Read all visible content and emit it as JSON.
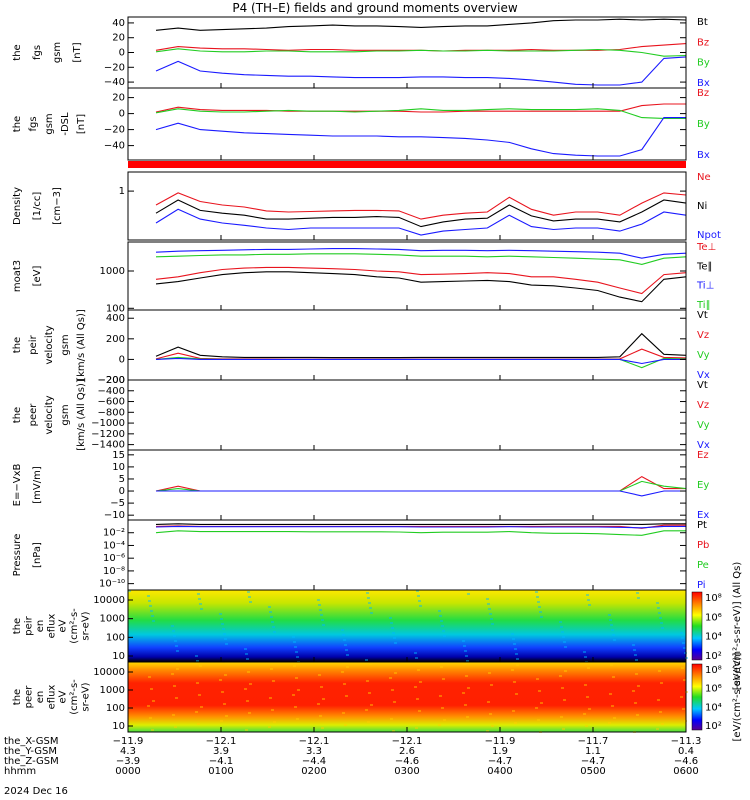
{
  "title": "P4 (TH–E) fields and ground moments overview",
  "colors": {
    "black": "#000000",
    "red": "#e8141e",
    "green": "#22cc22",
    "blue": "#1a1aff"
  },
  "chart_data": [
    {
      "type": "line",
      "ylabel": [
        "the",
        "fgs",
        "gsm",
        "[nT]"
      ],
      "ylim": [
        -48,
        48
      ],
      "yticks": [
        "40",
        "20",
        "0",
        "−20",
        "−40"
      ],
      "ytick_values": [
        40,
        20,
        0,
        -20,
        -40
      ],
      "series": [
        {
          "name": "Bt",
          "color": "black",
          "values": [
            30,
            33,
            30,
            31,
            32,
            33,
            35,
            36,
            37,
            36,
            36,
            35,
            34,
            35,
            36,
            36,
            38,
            40,
            43,
            44,
            44,
            45,
            44,
            45,
            44
          ]
        },
        {
          "name": "Bz",
          "color": "red",
          "values": [
            3,
            8,
            6,
            5,
            5,
            4,
            3,
            4,
            4,
            3,
            3,
            3,
            3,
            2,
            3,
            3,
            3,
            4,
            3,
            3,
            3,
            4,
            8,
            10,
            12
          ]
        },
        {
          "name": "By",
          "color": "green",
          "values": [
            1,
            5,
            2,
            1,
            1,
            2,
            2,
            1,
            1,
            1,
            2,
            2,
            3,
            2,
            2,
            3,
            2,
            2,
            2,
            3,
            4,
            3,
            0,
            -5,
            -4
          ]
        },
        {
          "name": "Bx",
          "color": "blue",
          "values": [
            -25,
            -12,
            -25,
            -28,
            -30,
            -31,
            -32,
            -32,
            -33,
            -34,
            -34,
            -34,
            -33,
            -33,
            -34,
            -34,
            -35,
            -37,
            -40,
            -43,
            -44,
            -44,
            -40,
            -8,
            -6
          ]
        }
      ]
    },
    {
      "type": "line",
      "ylabel": [
        "the",
        "fgs",
        "gsm",
        "-DSL",
        "[nT]"
      ],
      "ylim": [
        -58,
        32
      ],
      "yticks": [
        "20",
        "0",
        "−20",
        "−40"
      ],
      "ytick_values": [
        20,
        0,
        -20,
        -40
      ],
      "series": [
        {
          "name": "Bz",
          "color": "red",
          "values": [
            2,
            8,
            5,
            4,
            4,
            4,
            3,
            3,
            3,
            3,
            3,
            3,
            2,
            2,
            3,
            3,
            3,
            3,
            3,
            3,
            3,
            3,
            10,
            12,
            12
          ]
        },
        {
          "name": "By",
          "color": "green",
          "values": [
            1,
            6,
            3,
            2,
            2,
            3,
            4,
            3,
            3,
            2,
            3,
            4,
            6,
            4,
            4,
            5,
            6,
            5,
            5,
            5,
            6,
            4,
            -5,
            -6,
            -6
          ]
        },
        {
          "name": "Bx",
          "color": "blue",
          "values": [
            -20,
            -12,
            -20,
            -22,
            -24,
            -25,
            -26,
            -27,
            -28,
            -28,
            -28,
            -29,
            -29,
            -30,
            -31,
            -33,
            -36,
            -44,
            -50,
            -52,
            -53,
            -53,
            -45,
            -5,
            -5
          ]
        }
      ]
    },
    {
      "type": "line",
      "ylabel": [
        "Density",
        "[1/cc]",
        "[cm−3]"
      ],
      "scale": "log",
      "ylim": [
        0.06,
        3
      ],
      "yticks": [
        "1"
      ],
      "ytick_values": [
        1
      ],
      "series": [
        {
          "name": "Ne",
          "color": "red",
          "values": [
            0.45,
            0.9,
            0.55,
            0.45,
            0.4,
            0.32,
            0.3,
            0.31,
            0.32,
            0.33,
            0.33,
            0.32,
            0.2,
            0.25,
            0.28,
            0.3,
            0.7,
            0.35,
            0.25,
            0.3,
            0.3,
            0.25,
            0.5,
            0.9,
            0.8
          ]
        },
        {
          "name": "Ni",
          "color": "black",
          "values": [
            0.28,
            0.6,
            0.33,
            0.28,
            0.25,
            0.2,
            0.2,
            0.21,
            0.22,
            0.22,
            0.23,
            0.22,
            0.13,
            0.17,
            0.2,
            0.21,
            0.45,
            0.24,
            0.18,
            0.2,
            0.2,
            0.17,
            0.3,
            0.6,
            0.5
          ]
        },
        {
          "name": "Npot",
          "color": "blue",
          "values": [
            0.16,
            0.35,
            0.2,
            0.16,
            0.14,
            0.12,
            0.11,
            0.12,
            0.12,
            0.12,
            0.12,
            0.12,
            0.08,
            0.1,
            0.11,
            0.12,
            0.25,
            0.13,
            0.11,
            0.12,
            0.12,
            0.1,
            0.15,
            0.3,
            0.25
          ]
        }
      ]
    },
    {
      "type": "line",
      "ylabel": [
        "moat3",
        "[eV]"
      ],
      "scale": "log",
      "ylim": [
        90,
        6000
      ],
      "yticks": [
        "1000",
        "100"
      ],
      "ytick_values": [
        1000,
        100
      ],
      "series": [
        {
          "name": "Te⊥",
          "color": "red",
          "values": [
            600,
            700,
            900,
            1100,
            1200,
            1250,
            1250,
            1200,
            1150,
            1100,
            1000,
            950,
            800,
            820,
            850,
            900,
            850,
            700,
            700,
            600,
            500,
            350,
            250,
            800,
            900
          ]
        },
        {
          "name": "Te∥",
          "color": "black",
          "values": [
            450,
            520,
            650,
            800,
            900,
            950,
            950,
            900,
            850,
            800,
            700,
            650,
            500,
            520,
            540,
            560,
            520,
            420,
            400,
            350,
            300,
            200,
            150,
            600,
            700
          ]
        },
        {
          "name": "Ti⊥",
          "color": "blue",
          "values": [
            3200,
            3400,
            3500,
            3600,
            3700,
            3800,
            3800,
            3900,
            4000,
            4000,
            3900,
            3800,
            3500,
            3600,
            3600,
            3500,
            3600,
            3500,
            3400,
            3300,
            3200,
            3000,
            2200,
            2800,
            3000
          ]
        },
        {
          "name": "Ti∥",
          "color": "green",
          "values": [
            2400,
            2500,
            2600,
            2700,
            2700,
            2800,
            2800,
            2900,
            2900,
            2900,
            2800,
            2700,
            2500,
            2500,
            2500,
            2400,
            2500,
            2400,
            2300,
            2200,
            2100,
            2000,
            1500,
            2200,
            2400
          ]
        }
      ]
    },
    {
      "type": "line",
      "ylabel": [
        "the",
        "peir",
        "velocity",
        "gsm",
        "[km/s (All Qs)]"
      ],
      "ylim": [
        -200,
        480
      ],
      "yticks": [
        "400",
        "200",
        "0",
        "−200"
      ],
      "ytick_values": [
        400,
        200,
        0,
        -200
      ],
      "series": [
        {
          "name": "Vt",
          "color": "black",
          "values": [
            30,
            120,
            40,
            25,
            20,
            20,
            20,
            20,
            18,
            18,
            18,
            18,
            20,
            20,
            20,
            20,
            20,
            20,
            20,
            20,
            20,
            25,
            250,
            50,
            40
          ]
        },
        {
          "name": "Vz",
          "color": "red",
          "values": [
            5,
            60,
            10,
            5,
            5,
            5,
            3,
            3,
            3,
            3,
            3,
            3,
            3,
            3,
            3,
            3,
            3,
            3,
            3,
            3,
            3,
            5,
            100,
            20,
            15
          ]
        },
        {
          "name": "Vy",
          "color": "green",
          "values": [
            0,
            20,
            5,
            0,
            0,
            0,
            0,
            0,
            0,
            0,
            0,
            0,
            0,
            0,
            0,
            0,
            0,
            0,
            0,
            0,
            0,
            0,
            -80,
            10,
            5
          ]
        },
        {
          "name": "Vx",
          "color": "blue",
          "values": [
            0,
            10,
            0,
            0,
            0,
            0,
            0,
            0,
            0,
            0,
            0,
            0,
            0,
            0,
            0,
            0,
            0,
            0,
            0,
            0,
            0,
            0,
            -40,
            0,
            0
          ]
        }
      ]
    },
    {
      "type": "line",
      "ylabel": [
        "the",
        "peer",
        "velocity",
        "gsm",
        "[km/s (All Qs)]"
      ],
      "ylim": [
        -1500,
        -200
      ],
      "yticks": [
        "−200",
        "−400",
        "−600",
        "−800",
        "−1000",
        "−1200",
        "−1400"
      ],
      "ytick_values": [
        -200,
        -400,
        -600,
        -800,
        -1000,
        -1200,
        -1400
      ],
      "series": [
        {
          "name": "Vt",
          "color": "black",
          "values": []
        },
        {
          "name": "Vz",
          "color": "red",
          "values": []
        },
        {
          "name": "Vy",
          "color": "green",
          "values": []
        },
        {
          "name": "Vx",
          "color": "blue",
          "values": []
        }
      ]
    },
    {
      "type": "line",
      "ylabel": [
        "E=−VxB",
        "[mV/m]"
      ],
      "ylim": [
        -12,
        17
      ],
      "yticks": [
        "15",
        "10",
        "5",
        "0",
        "−5",
        "−10"
      ],
      "ytick_values": [
        15,
        10,
        5,
        0,
        -5,
        -10
      ],
      "series": [
        {
          "name": "Ez",
          "color": "red",
          "values": [
            0,
            2,
            0,
            0,
            0,
            0,
            0,
            0,
            0,
            0,
            0,
            0,
            0,
            0,
            0,
            0,
            0,
            0,
            0,
            0,
            0,
            0,
            6,
            1,
            1
          ]
        },
        {
          "name": "Ey",
          "color": "green",
          "values": [
            0,
            1,
            0,
            0,
            0,
            0,
            0,
            0,
            0,
            0,
            0,
            0,
            0,
            0,
            0,
            0,
            0,
            0,
            0,
            0,
            0,
            0,
            4,
            2,
            1
          ]
        },
        {
          "name": "Ex",
          "color": "blue",
          "values": [
            0,
            0,
            0,
            0,
            0,
            0,
            0,
            0,
            0,
            0,
            0,
            0,
            0,
            0,
            0,
            0,
            0,
            0,
            0,
            0,
            0,
            0,
            -2,
            0,
            0
          ]
        }
      ]
    },
    {
      "type": "line",
      "ylabel": [
        "Pressure",
        "[nPa]"
      ],
      "scale": "log",
      "ylim": [
        1e-11,
        1
      ],
      "yticks": [
        "10⁻²",
        "10⁻⁴",
        "10⁻⁶",
        "10⁻⁸",
        "10⁻¹⁰"
      ],
      "ytick_values": [
        0.01,
        0.0001,
        1e-06,
        1e-08,
        1e-10
      ],
      "series": [
        {
          "name": "Pt",
          "color": "black",
          "values": [
            0.2,
            0.25,
            0.2,
            0.2,
            0.2,
            0.2,
            0.2,
            0.2,
            0.2,
            0.2,
            0.2,
            0.2,
            0.2,
            0.2,
            0.2,
            0.2,
            0.2,
            0.2,
            0.22,
            0.22,
            0.22,
            0.22,
            0.2,
            0.25,
            0.25
          ]
        },
        {
          "name": "Pb",
          "color": "red",
          "values": [
            0.1,
            0.12,
            0.1,
            0.1,
            0.1,
            0.1,
            0.1,
            0.1,
            0.1,
            0.1,
            0.1,
            0.1,
            0.1,
            0.1,
            0.1,
            0.1,
            0.1,
            0.1,
            0.1,
            0.1,
            0.1,
            0.1,
            0.05,
            0.15,
            0.15
          ]
        },
        {
          "name": "Pe",
          "color": "green",
          "values": [
            0.01,
            0.02,
            0.015,
            0.015,
            0.015,
            0.015,
            0.015,
            0.014,
            0.014,
            0.014,
            0.014,
            0.013,
            0.01,
            0.012,
            0.012,
            0.012,
            0.015,
            0.01,
            0.008,
            0.008,
            0.007,
            0.005,
            0.004,
            0.02,
            0.02
          ]
        },
        {
          "name": "Pi",
          "color": "blue",
          "values": [
            0.08,
            0.1,
            0.09,
            0.09,
            0.09,
            0.09,
            0.09,
            0.09,
            0.09,
            0.09,
            0.09,
            0.09,
            0.08,
            0.08,
            0.08,
            0.08,
            0.09,
            0.08,
            0.08,
            0.08,
            0.08,
            0.07,
            0.06,
            0.1,
            0.1
          ]
        }
      ]
    },
    {
      "type": "heatmap",
      "ylabel": [
        "the",
        "peir",
        "en",
        "eflux",
        "eV",
        "(cm²-s-",
        "sr-eV)"
      ],
      "yticks": [
        "10000",
        "1000",
        "100",
        "10"
      ],
      "colorbar": {
        "label": "[eV/(cm²-s-sr-eV)] (All Qs)",
        "ticks": [
          "10⁸",
          "10⁶",
          "10⁴",
          "10²"
        ]
      }
    },
    {
      "type": "heatmap",
      "ylabel": [
        "the",
        "peer",
        "en",
        "eflux",
        "eV",
        "(cm²-s-",
        "sr-eV)"
      ],
      "yticks": [
        "10000",
        "1000",
        "100",
        "10"
      ],
      "colorbar": {
        "label": "[eV/(cm²-s-sr-eV)]",
        "ticks": [
          "10⁸",
          "10⁶",
          "10⁴",
          "10²"
        ]
      }
    }
  ],
  "x_axis": {
    "times": [
      "0000",
      "0100",
      "0200",
      "0300",
      "0400",
      "0500",
      "0600"
    ],
    "rows": [
      {
        "label": "the_X-GSM",
        "values": [
          "−11.9",
          "−12.1",
          "−12.1",
          "−12.1",
          "−11.9",
          "−11.7",
          "−11.3"
        ]
      },
      {
        "label": "the_Y-GSM",
        "values": [
          "4.3",
          "3.9",
          "3.3",
          "2.6",
          "1.9",
          "1.1",
          "0.4"
        ]
      },
      {
        "label": "the_Z-GSM",
        "values": [
          "−3.9",
          "−4.1",
          "−4.4",
          "−4.6",
          "−4.7",
          "−4.7",
          "−4.6"
        ]
      },
      {
        "label": "hhmm",
        "values": [
          "0000",
          "0100",
          "0200",
          "0300",
          "0400",
          "0500",
          "0600"
        ]
      }
    ],
    "date": "2024 Dec 16"
  }
}
